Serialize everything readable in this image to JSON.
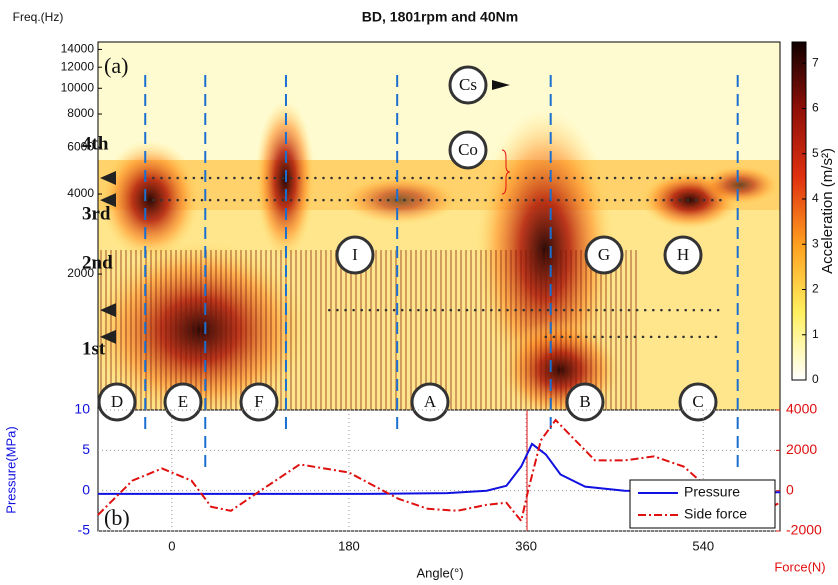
{
  "chart_data": [
    {
      "type": "spectrogram",
      "title": "BD, 1801rpm and 40Nm",
      "panel_label": "(a)",
      "y_label": "Freq.(Hz)",
      "log_scale": true,
      "xlim": [
        -75,
        618
      ],
      "ylim": [
        616,
        14930
      ],
      "yticks": [
        2000,
        4000,
        6000,
        8000,
        10000,
        12000,
        14000
      ],
      "vertical_lines": [
        -27,
        34,
        116,
        229,
        385,
        575
      ],
      "order_lines": [
        4595,
        3796,
        1464,
        1161
      ],
      "order_labels": [
        "4th",
        "3rd",
        "2nd",
        "1st"
      ],
      "circle_labels": [
        "D",
        "E",
        "F",
        "A",
        "B",
        "C",
        "I",
        "G",
        "H",
        "Cs",
        "Co"
      ],
      "colorbar": {
        "label": "Acceleration (m/s²)",
        "lim": [
          0,
          7.47
        ],
        "ticks": [
          0,
          1,
          2,
          3,
          4,
          5,
          6,
          7
        ]
      }
    },
    {
      "type": "line",
      "panel_label": "(b)",
      "x_label": "Angle(°)",
      "y_label": "Pressure(MPa)",
      "y2_label": "Force(N)",
      "xlim": [
        -75,
        618
      ],
      "xticks": [
        0,
        180,
        360,
        540
      ],
      "ylim": [
        -5,
        10
      ],
      "yticks": [
        -5,
        0,
        5,
        10
      ],
      "y2lim": [
        -2000,
        4000
      ],
      "y2ticks": [
        -2000,
        0,
        2000,
        4000
      ],
      "grid": true,
      "legend": "lower right",
      "series": [
        {
          "name": "Pressure",
          "color": "#1010e0",
          "x": [
            -75,
            0,
            100,
            200,
            280,
            320,
            340,
            355,
            366,
            380,
            395,
            420,
            460,
            540,
            618
          ],
          "values": [
            -0.4,
            -0.4,
            -0.4,
            -0.4,
            -0.3,
            0,
            0.6,
            3,
            5.8,
            4.5,
            2,
            0.5,
            0,
            -0.2,
            -0.2
          ]
        },
        {
          "name": "Side force",
          "color": "#e01010",
          "axis": "y2",
          "x": [
            -75,
            -40,
            -10,
            20,
            40,
            60,
            90,
            130,
            180,
            230,
            260,
            290,
            320,
            340,
            355,
            362,
            375,
            390,
            410,
            430,
            460,
            490,
            520,
            560,
            590,
            618
          ],
          "values": [
            -1200,
            500,
            1100,
            500,
            -800,
            -1000,
            0,
            1300,
            900,
            -400,
            -900,
            -1000,
            -700,
            -600,
            -1500,
            0,
            2500,
            3500,
            2500,
            1500,
            1500,
            1700,
            1200,
            -500,
            -1200,
            -600
          ]
        }
      ]
    }
  ]
}
